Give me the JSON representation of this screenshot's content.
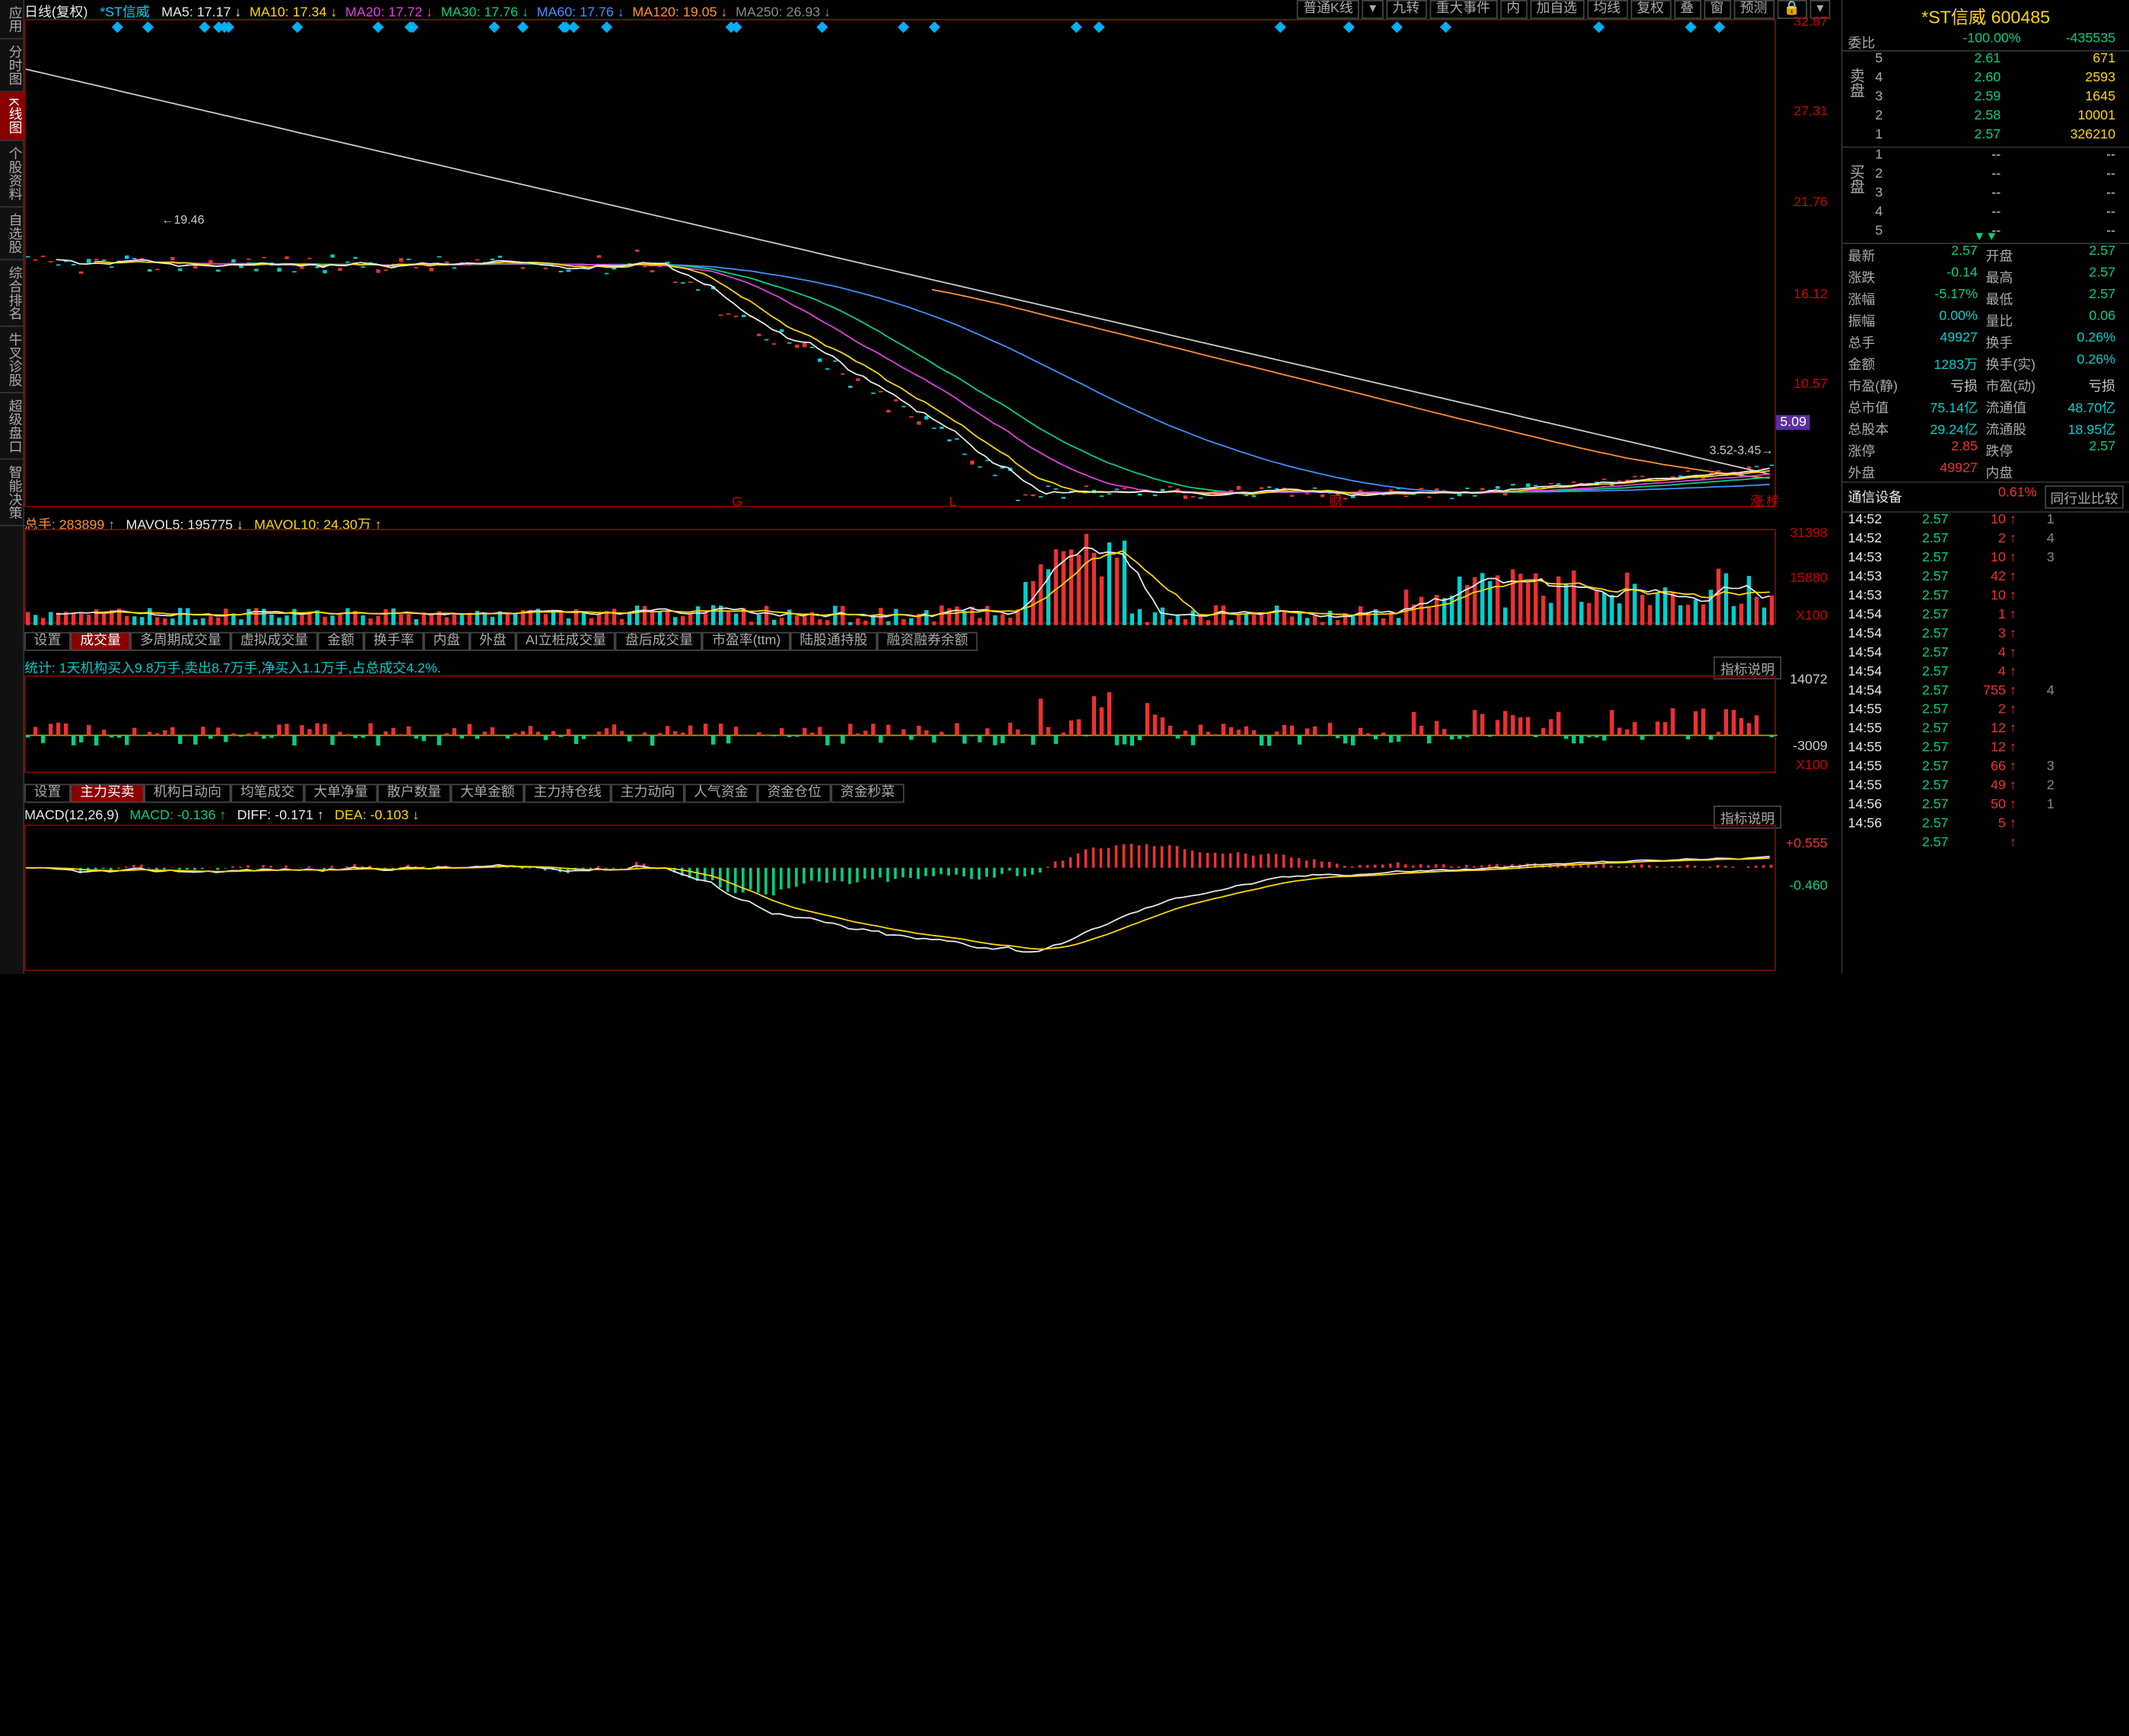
{
  "stock": {
    "name": "*ST信威",
    "code": "600485"
  },
  "header": {
    "title": "日线(复权)",
    "series": "*ST信威",
    "ma": [
      {
        "label": "MA5:",
        "value": "17.17",
        "arrow": "↓",
        "color": "#e8e8e8"
      },
      {
        "label": "MA10:",
        "value": "17.34",
        "arrow": "↓",
        "color": "#ffd700"
      },
      {
        "label": "MA20:",
        "value": "17.72",
        "arrow": "↓",
        "color": "#e040e0"
      },
      {
        "label": "MA30:",
        "value": "17.76",
        "arrow": "↓",
        "color": "#00d084"
      },
      {
        "label": "MA60:",
        "value": "17.76",
        "arrow": "↓",
        "color": "#4090ff"
      },
      {
        "label": "MA120:",
        "value": "19.05",
        "arrow": "↓",
        "color": "#ff9030"
      },
      {
        "label": "MA250:",
        "value": "26.93",
        "arrow": "↓",
        "color": "#888"
      }
    ],
    "right_buttons": [
      "普通K线",
      "▾",
      "九转",
      "重大事件",
      "内",
      "加自选",
      "均线",
      "复权",
      "叠",
      "窗",
      "预测",
      "🔒",
      "▾"
    ]
  },
  "left_tabs": [
    "应用",
    "分时图",
    "K线图",
    "个股资料",
    "自选股",
    "综合排名",
    "牛叉诊股",
    "超级盘口",
    "智能决策"
  ],
  "left_tab_red_index": 2,
  "main_chart": {
    "ylim": [
      3,
      33
    ],
    "yticks": [
      32.87,
      27.31,
      21.76,
      16.12,
      10.57
    ],
    "price_label": "5.09",
    "annot_high": "19.46",
    "annot_low": "3.52-3.45",
    "floor_marks": [
      "G",
      "L",
      "财",
      "涨",
      "榜",
      "诊"
    ],
    "colors": {
      "ma5": "#e8e8e8",
      "ma10": "#ffd700",
      "ma20": "#e040e0",
      "ma30": "#00d084",
      "ma60": "#4090ff",
      "ma120": "#ff9030",
      "ma250": "#cccccc"
    }
  },
  "volume": {
    "header": [
      {
        "text": "总手: 283899",
        "arrow": "↑",
        "color": "#ff9030"
      },
      {
        "text": "MAVOL5: 195775",
        "arrow": "↓",
        "color": "#e8e8e8"
      },
      {
        "text": "MAVOL10: 24.30万",
        "arrow": "↑",
        "color": "#ffd700"
      }
    ],
    "ylim": [
      0,
      33000
    ],
    "yticks": [
      31398,
      15880
    ],
    "unit": "X100"
  },
  "tabs_vol": [
    "设置",
    "成交量",
    "多周期成交量",
    "虚拟成交量",
    "金额",
    "换手率",
    "内盘",
    "外盘",
    "AI立桩成交量",
    "盘后成交量",
    "市盈率(ttm)",
    "陆股通持股",
    "融资融券余额"
  ],
  "tabs_vol_active": 1,
  "flow": {
    "stat": "统计: 1天机构买入9.8万手,卖出8.7万手,净买入1.1万手,占总成交4.2%.",
    "indicator_btn": "指标说明",
    "ylim": [
      -10000,
      15000
    ],
    "yticks": [
      14072,
      -3009
    ],
    "unit": "X100"
  },
  "tabs_flow": [
    "设置",
    "主力买卖",
    "机构日动向",
    "均笔成交",
    "大单净量",
    "散户数量",
    "大单金额",
    "主力持仓线",
    "主力动向",
    "人气资金",
    "资金仓位",
    "资金秒菜"
  ],
  "tabs_flow_active": 1,
  "macd": {
    "header": [
      {
        "text": "MACD(12,26,9)",
        "color": "#e8e8e8"
      },
      {
        "text": "MACD: -0.136",
        "arrow": "↑",
        "color": "#00d084"
      },
      {
        "text": "DIFF: -0.171",
        "arrow": "↑",
        "color": "#e8e8e8"
      },
      {
        "text": "DEA: -0.103",
        "arrow": "↓",
        "color": "#ffd700"
      }
    ],
    "indicator_btn": "指标说明",
    "ylim": [
      -2.5,
      1
    ],
    "yticks": [
      {
        "v": 0.555,
        "c": "#f03030",
        "t": "+0.555"
      },
      {
        "v": -0.46,
        "c": "#00d084",
        "t": "-0.460"
      }
    ]
  },
  "right": {
    "weibi": {
      "label": "委比",
      "value": "-100.00%",
      "diff": "-435535"
    },
    "asks": [
      {
        "n": "5",
        "p": "2.61",
        "v": "671"
      },
      {
        "n": "4",
        "p": "2.60",
        "v": "2593"
      },
      {
        "n": "3",
        "p": "2.59",
        "v": "1645"
      },
      {
        "n": "2",
        "p": "2.58",
        "v": "10001"
      },
      {
        "n": "1",
        "p": "2.57",
        "v": "326210"
      }
    ],
    "ask_label": "卖盘",
    "bids": [
      {
        "n": "1",
        "p": "--",
        "v": "--"
      },
      {
        "n": "2",
        "p": "--",
        "v": "--"
      },
      {
        "n": "3",
        "p": "--",
        "v": "--"
      },
      {
        "n": "4",
        "p": "--",
        "v": "--"
      },
      {
        "n": "5",
        "p": "--",
        "v": "--"
      }
    ],
    "bid_label": "买盘",
    "fields": [
      [
        "最新",
        "2.57",
        "g",
        "开盘",
        "2.57",
        "g"
      ],
      [
        "涨跌",
        "-0.14",
        "g",
        "最高",
        "2.57",
        "g"
      ],
      [
        "涨幅",
        "-5.17%",
        "g",
        "最低",
        "2.57",
        "g"
      ],
      [
        "振幅",
        "0.00%",
        "c",
        "量比",
        "0.06",
        "g"
      ],
      [
        "总手",
        "49927",
        "c",
        "换手",
        "0.26%",
        "c"
      ],
      [
        "金额",
        "1283万",
        "c",
        "换手(实)",
        "0.26%",
        "c"
      ],
      [
        "市盈(静)",
        "亏损",
        "w",
        "市盈(动)",
        "亏损",
        "w"
      ],
      [
        "总市值",
        "75.14亿",
        "c",
        "流通值",
        "48.70亿",
        "c"
      ],
      [
        "总股本",
        "29.24亿",
        "c",
        "流通股",
        "18.95亿",
        "c"
      ],
      [
        "涨停",
        "2.85",
        "r",
        "跌停",
        "2.57",
        "g"
      ],
      [
        "外盘",
        "49927",
        "r",
        "内盘",
        "",
        "g"
      ]
    ],
    "sector": {
      "name": "通信设备",
      "chg": "0.61%",
      "btn": "同行业比较"
    },
    "ticks": [
      [
        "14:52",
        "2.57",
        "10",
        "↑",
        "1"
      ],
      [
        "14:52",
        "2.57",
        "2",
        "↑",
        "4"
      ],
      [
        "14:53",
        "2.57",
        "10",
        "↑",
        "3"
      ],
      [
        "14:53",
        "2.57",
        "42",
        "↑",
        ""
      ],
      [
        "14:53",
        "2.57",
        "10",
        "↑",
        ""
      ],
      [
        "14:54",
        "2.57",
        "1",
        "↑",
        ""
      ],
      [
        "14:54",
        "2.57",
        "3",
        "↑",
        ""
      ],
      [
        "14:54",
        "2.57",
        "4",
        "↑",
        ""
      ],
      [
        "14:54",
        "2.57",
        "4",
        "↑",
        ""
      ],
      [
        "14:54",
        "2.57",
        "755",
        "↑",
        "4"
      ],
      [
        "14:55",
        "2.57",
        "2",
        "↑",
        ""
      ],
      [
        "14:55",
        "2.57",
        "12",
        "↑",
        ""
      ],
      [
        "14:55",
        "2.57",
        "12",
        "↑",
        ""
      ],
      [
        "14:55",
        "2.57",
        "66",
        "↑",
        "3"
      ],
      [
        "14:55",
        "2.57",
        "49",
        "↑",
        "2"
      ],
      [
        "14:56",
        "2.57",
        "50",
        "↑",
        "1"
      ],
      [
        "14:56",
        "2.57",
        "5",
        "↑",
        ""
      ],
      [
        "",
        "2.57",
        "",
        "↑",
        ""
      ]
    ]
  }
}
